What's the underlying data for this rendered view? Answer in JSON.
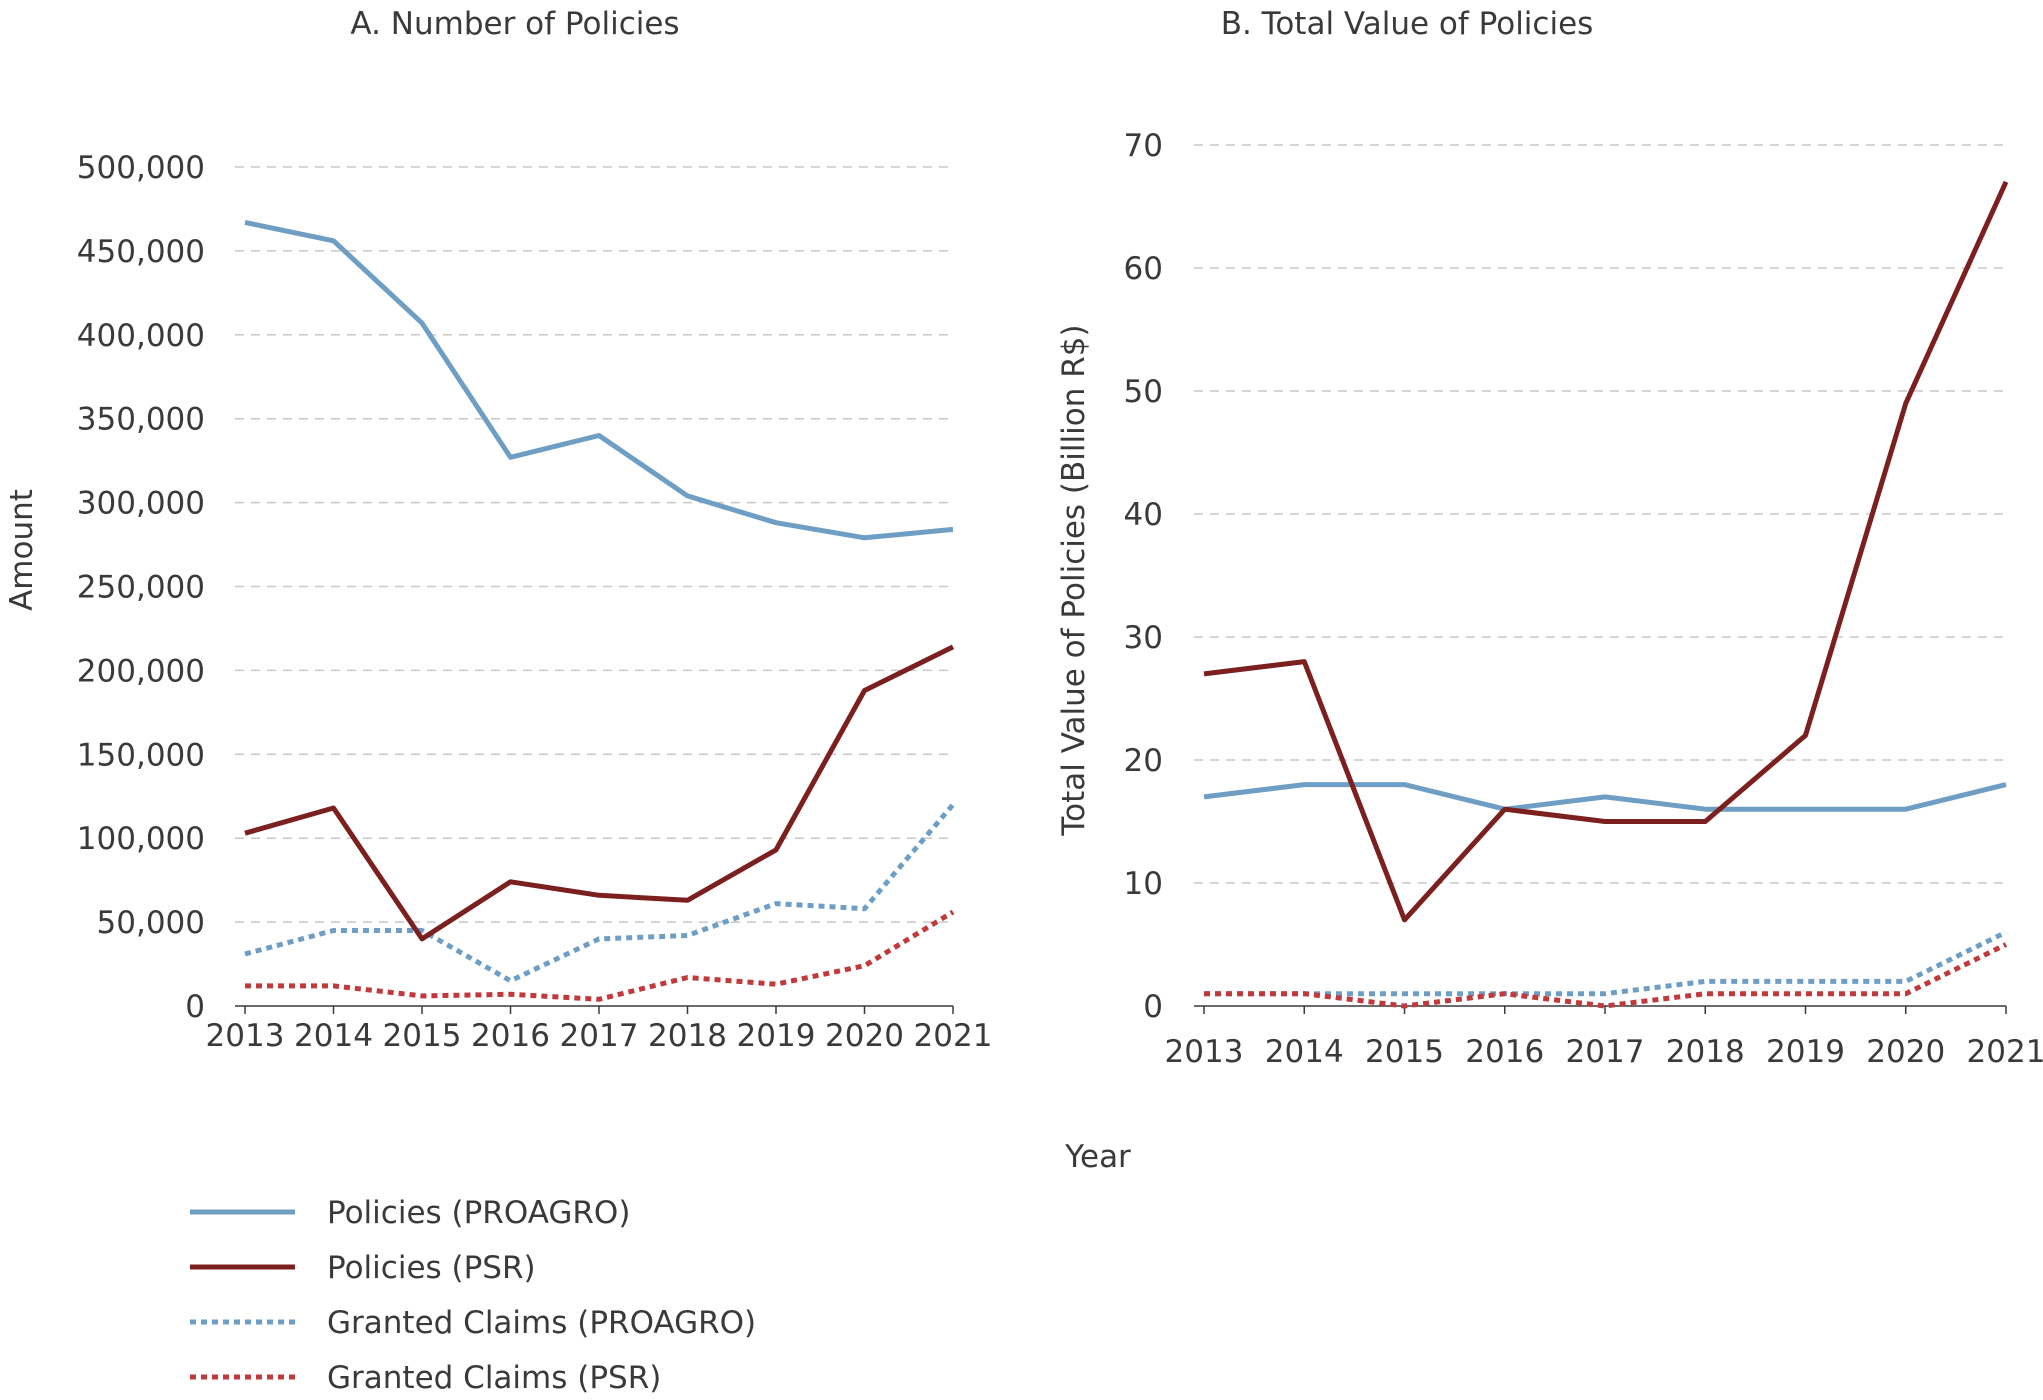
{
  "chart_data": [
    {
      "type": "line",
      "title": "A. Number of Policies",
      "xlabel": "",
      "ylabel": "Amount",
      "categories": [
        "2013",
        "2014",
        "2015",
        "2016",
        "2017",
        "2018",
        "2019",
        "2020",
        "2021"
      ],
      "ylim": [
        0,
        500000
      ],
      "yticks": [
        0,
        50000,
        100000,
        150000,
        200000,
        250000,
        300000,
        350000,
        400000,
        450000,
        500000
      ],
      "ytick_labels": [
        "0",
        "50,000",
        "100,000",
        "150,000",
        "200,000",
        "250,000",
        "300,000",
        "350,000",
        "400,000",
        "450,000",
        "500,000"
      ],
      "grid": true,
      "series": [
        {
          "name": "Policies (PROAGRO)",
          "color": "#6f9ec4",
          "style": "solid",
          "values": [
            467000,
            456000,
            407000,
            327000,
            340000,
            304000,
            288000,
            279000,
            284000
          ]
        },
        {
          "name": "Policies (PSR)",
          "color": "#7b1f1f",
          "style": "solid",
          "values": [
            103000,
            118000,
            40000,
            74000,
            66000,
            63000,
            93000,
            188000,
            214000
          ]
        },
        {
          "name": "Granted Claims (PROAGRO)",
          "color": "#6f9ec4",
          "style": "dotted",
          "values": [
            31000,
            45000,
            45000,
            15000,
            40000,
            42000,
            61000,
            58000,
            120000
          ]
        },
        {
          "name": "Granted Claims (PSR)",
          "color": "#c0393b",
          "style": "dotted",
          "values": [
            12000,
            12000,
            6000,
            7000,
            4000,
            17000,
            13000,
            24000,
            56000
          ]
        }
      ]
    },
    {
      "type": "line",
      "title": "B. Total Value of Policies",
      "xlabel": "",
      "ylabel": "Total Value of Policies (Billion R$)",
      "categories": [
        "2013",
        "2014",
        "2015",
        "2016",
        "2017",
        "2018",
        "2019",
        "2020",
        "2021"
      ],
      "ylim": [
        0,
        70
      ],
      "yticks": [
        0,
        10,
        20,
        30,
        40,
        50,
        60,
        70
      ],
      "ytick_labels": [
        "0",
        "10",
        "20",
        "30",
        "40",
        "50",
        "60",
        "70"
      ],
      "grid": true,
      "series": [
        {
          "name": "Policies (PROAGRO)",
          "color": "#6f9ec4",
          "style": "solid",
          "values": [
            17,
            18,
            18,
            16,
            17,
            16,
            16,
            16,
            18
          ]
        },
        {
          "name": "Policies (PSR)",
          "color": "#7b1f1f",
          "style": "solid",
          "values": [
            27,
            28,
            7,
            16,
            15,
            15,
            22,
            49,
            67
          ]
        },
        {
          "name": "Granted Claims (PROAGRO)",
          "color": "#6f9ec4",
          "style": "dotted",
          "values": [
            1,
            1,
            1,
            1,
            1,
            2,
            2,
            2,
            6
          ]
        },
        {
          "name": "Granted Claims (PSR)",
          "color": "#c0393b",
          "style": "dotted",
          "values": [
            1,
            1,
            0,
            1,
            0,
            1,
            1,
            1,
            5
          ]
        }
      ]
    }
  ],
  "shared_xlabel": "Year",
  "legend": {
    "placement": "bottom-left",
    "items": [
      {
        "label": "Policies (PROAGRO)",
        "color": "#6f9ec4",
        "style": "solid"
      },
      {
        "label": "Policies (PSR)",
        "color": "#7b1f1f",
        "style": "solid"
      },
      {
        "label": "Granted Claims (PROAGRO)",
        "color": "#6f9ec4",
        "style": "dotted"
      },
      {
        "label": "Granted Claims (PSR)",
        "color": "#c0393b",
        "style": "dotted"
      }
    ]
  }
}
